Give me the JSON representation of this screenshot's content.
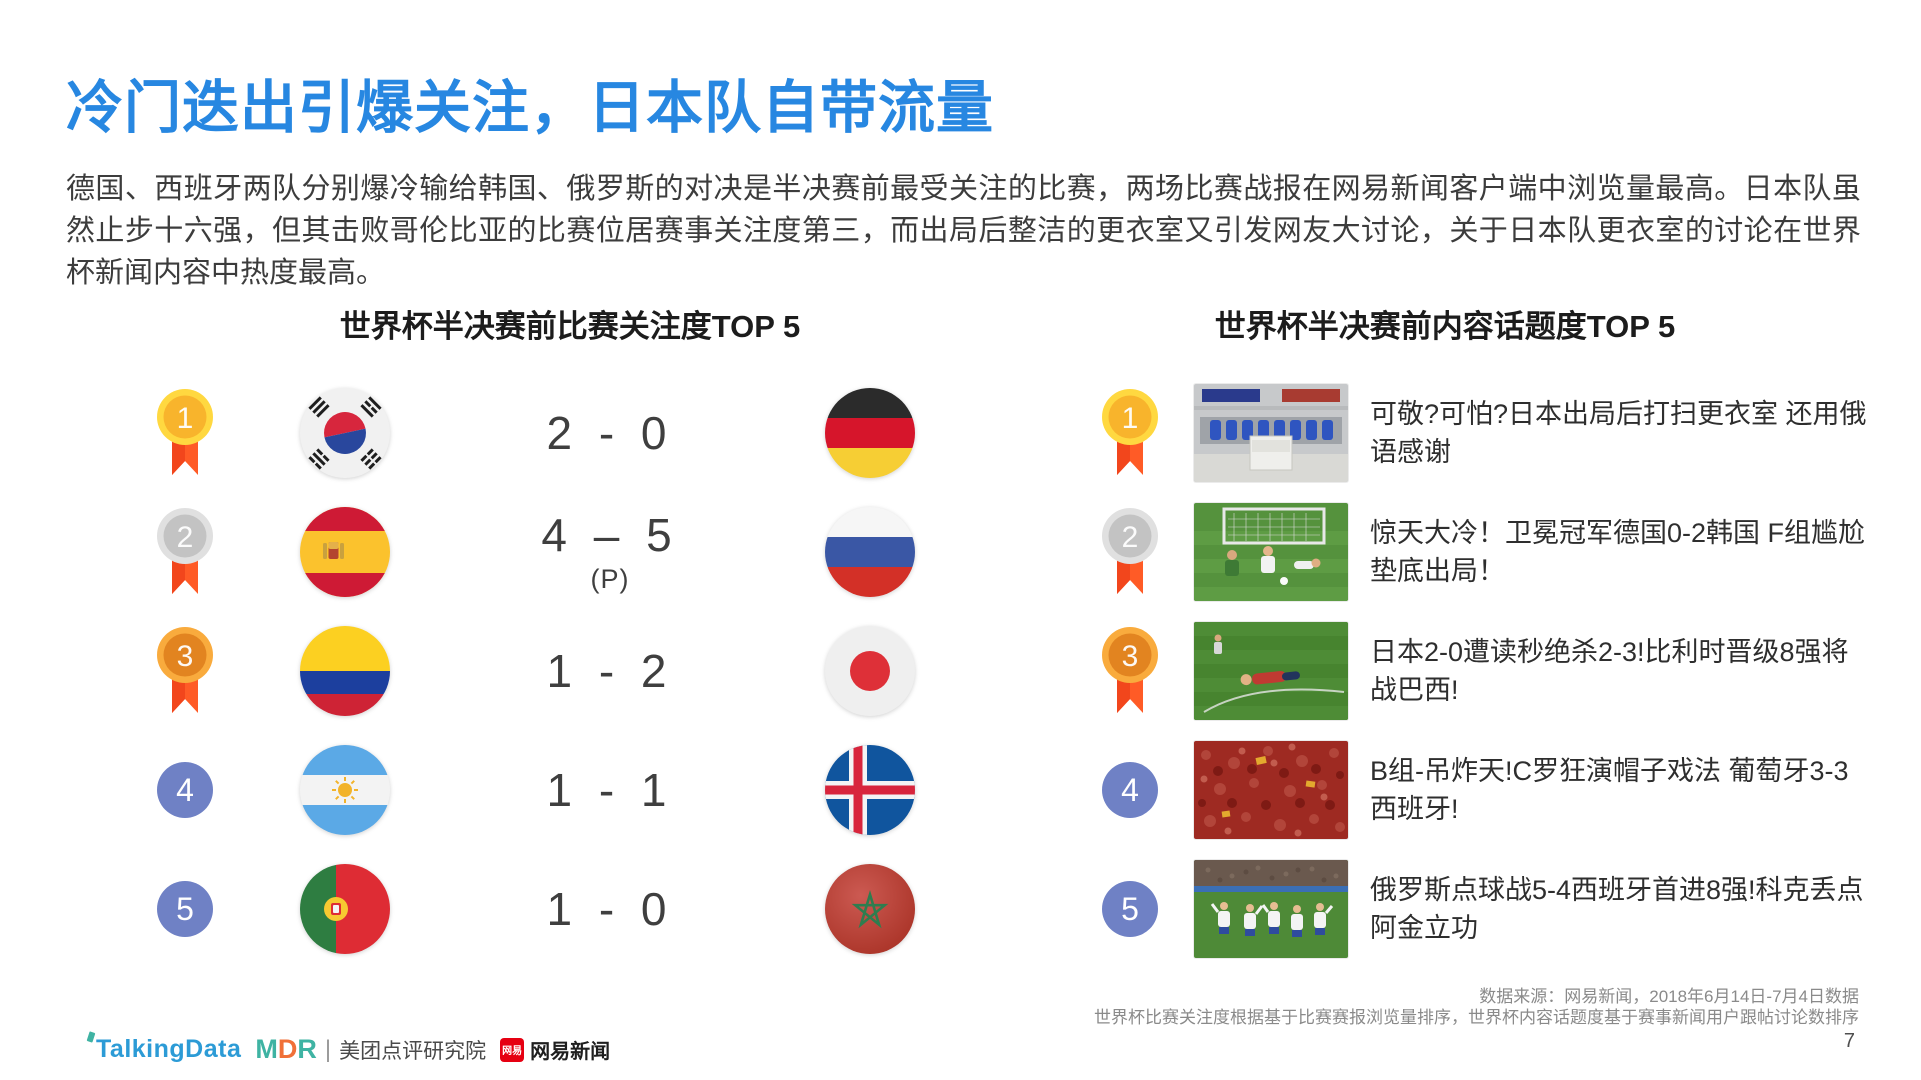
{
  "page": {
    "title": "冷门迭出引爆关注，日本队自带流量",
    "body": "德国、西班牙两队分别爆冷输给韩国、俄罗斯的对决是半决赛前最受关注的比赛，两场比赛战报在网易新闻客户端中浏览量最高。日本队虽然止步十六强，但其击败哥伦比亚的比赛位居赛事关注度第三，而出局后整洁的更衣室又引发网友大讨论，关于日本队更衣室的讨论在世界杯新闻内容中热度最高。"
  },
  "colors": {
    "title_blue": "#2787E1",
    "body_text": "#3C3C3C",
    "rank_badge_blue": "#6F81C5",
    "medal_ribbon_orange": "#FF5B26",
    "medal_gold": "#F8B42C",
    "medal_silver": "#C3C3C3",
    "medal_bronze": "#E28420",
    "talkingdata_blue": "#2C9BD6",
    "mdr_teal": "#3FB3A3",
    "mdr_orange": "#F07038",
    "netease_red": "#E60012",
    "source_gray": "#8A8A8A"
  },
  "left_panel": {
    "header": "世界杯半决赛前比赛关注度TOP 5",
    "matches": [
      {
        "rank": "1",
        "medal": "gold",
        "home_flag": "south-korea",
        "score": "2 - 0",
        "score_note": "",
        "away_flag": "germany"
      },
      {
        "rank": "2",
        "medal": "silver",
        "home_flag": "spain",
        "score": "4 – 5",
        "score_note": "(P)",
        "away_flag": "russia"
      },
      {
        "rank": "3",
        "medal": "bronze",
        "home_flag": "colombia",
        "score": "1 - 2",
        "score_note": "",
        "away_flag": "japan"
      },
      {
        "rank": "4",
        "medal": "plain",
        "home_flag": "argentina",
        "score": "1 - 1",
        "score_note": "",
        "away_flag": "iceland"
      },
      {
        "rank": "5",
        "medal": "plain",
        "home_flag": "portugal",
        "score": "1 - 0",
        "score_note": "",
        "away_flag": "morocco"
      }
    ]
  },
  "right_panel": {
    "header": "世界杯半决赛前内容话题度TOP 5",
    "topics": [
      {
        "rank": "1",
        "medal": "gold",
        "photo": "locker-room",
        "headline": "可敬?可怕?日本出局后打扫更衣室 还用俄语感谢"
      },
      {
        "rank": "2",
        "medal": "silver",
        "photo": "goal-scene",
        "headline": "惊天大冷！卫冕冠军德国0-2韩国 F组尴尬垫底出局！"
      },
      {
        "rank": "3",
        "medal": "bronze",
        "photo": "player-on-ground",
        "headline": "日本2-0遭读秒绝杀2-3!比利时晋级8强将战巴西!"
      },
      {
        "rank": "4",
        "medal": "plain",
        "photo": "red-crowd",
        "headline": "B组-吊炸天!C罗狂演帽子戏法 葡萄牙3-3西班牙!"
      },
      {
        "rank": "5",
        "medal": "plain",
        "photo": "team-celebration",
        "headline": "俄罗斯点球战5-4西班牙首进8强!科克丢点阿金立功"
      }
    ]
  },
  "footer": {
    "source_line1": "数据来源：网易新闻，2018年6月14日-7月4日数据",
    "source_line2": "世界杯比赛关注度根据基于比赛赛报浏览量排序，世界杯内容话题度基于赛事新闻用户跟帖讨论数排序",
    "page_number": "7",
    "talkingdata_label": "TalkingData",
    "mdr_m": "M",
    "mdr_d": "D",
    "mdr_r": "R",
    "meituan_label": "美团点评研究院",
    "netease_mark": "网易",
    "netease_label": "网易新闻"
  }
}
